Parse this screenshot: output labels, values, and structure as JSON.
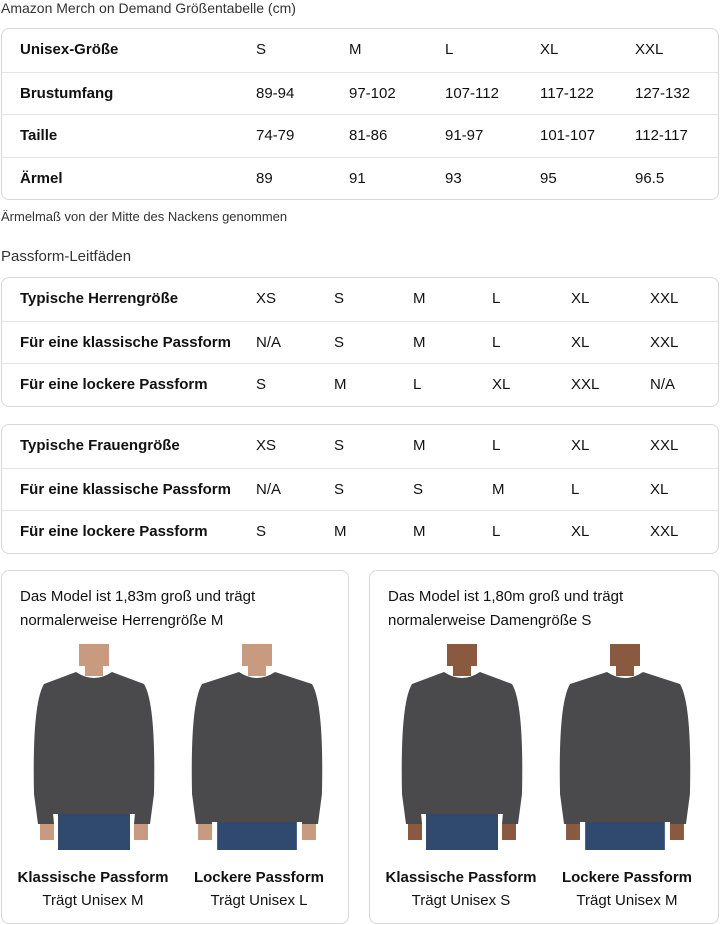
{
  "title": "Amazon Merch on Demand Größentabelle (cm)",
  "size_table": {
    "rows": [
      [
        "Unisex-Größe",
        "S",
        "M",
        "L",
        "XL",
        "XXL"
      ],
      [
        "Brustumfang",
        "89-94",
        "97-102",
        "107-112",
        "117-122",
        "127-132"
      ],
      [
        "Taille",
        "74-79",
        "81-86",
        "91-97",
        "101-107",
        "112-117"
      ],
      [
        "Ärmel",
        "89",
        "91",
        "93",
        "95",
        "96.5"
      ]
    ]
  },
  "note": "Ärmelmaß von der Mitte des Nackens genommen",
  "fit_title": "Passform-Leitfäden",
  "men_table": {
    "rows": [
      [
        "Typische Herrengröße",
        "XS",
        "S",
        "M",
        "L",
        "XL",
        "XXL"
      ],
      [
        "Für eine klassische Passform",
        "N/A",
        "S",
        "M",
        "L",
        "XL",
        "XXL"
      ],
      [
        "Für eine lockere Passform",
        "S",
        "M",
        "L",
        "XL",
        "XXL",
        "N/A"
      ]
    ]
  },
  "women_table": {
    "rows": [
      [
        "Typische Frauengröße",
        "XS",
        "S",
        "M",
        "L",
        "XL",
        "XXL"
      ],
      [
        "Für eine klassische Passform",
        "N/A",
        "S",
        "S",
        "M",
        "L",
        "XL"
      ],
      [
        "Für eine lockere Passform",
        "S",
        "M",
        "M",
        "L",
        "XL",
        "XXL"
      ]
    ]
  },
  "cards": [
    {
      "text": [
        "Das Model ist 1,83m groß und trägt",
        "normalerweise Herrengröße M"
      ],
      "fits": [
        {
          "title": "Klassische Passform",
          "sub": "Trägt Unisex M"
        },
        {
          "title": "Lockere Passform",
          "sub": "Trägt Unisex L"
        }
      ]
    },
    {
      "text": [
        "Das Model ist 1,80m groß und trägt",
        "normalerweise Damengröße S"
      ],
      "fits": [
        {
          "title": "Klassische Passform",
          "sub": "Trägt Unisex S"
        },
        {
          "title": "Lockere Passform",
          "sub": "Trägt Unisex M"
        }
      ]
    }
  ],
  "colors": {
    "sweater": "#4a4a4c",
    "jeans": "#2f4a6e",
    "skin": "#c89a80",
    "border": "#d5d9d9"
  }
}
